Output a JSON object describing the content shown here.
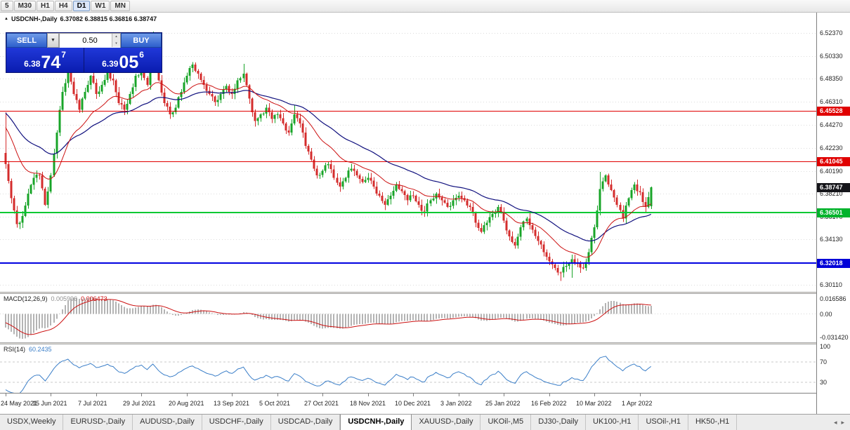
{
  "toolbar": {
    "timeframes": [
      "5",
      "M30",
      "H1",
      "H4",
      "D1",
      "W1",
      "MN"
    ],
    "active": "D1"
  },
  "chart_header": {
    "marker": "▲",
    "symbol_title": "USDCNH-,Daily",
    "ohlc_text": "6.37082 6.38815 6.36816 6.38747"
  },
  "trade_panel": {
    "sell_label": "SELL",
    "buy_label": "BUY",
    "volume": "0.50",
    "dropdown_icon": "▼",
    "spin_up": "▴",
    "spin_down": "▾",
    "bid": {
      "prefix": "6.38",
      "pips": "74",
      "pipette": "7"
    },
    "ask": {
      "prefix": "6.39",
      "pips": "05",
      "pipette": "6"
    }
  },
  "indicators": {
    "macd": {
      "name": "MACD(12,26,9)",
      "main_value": "0.005996",
      "signal_value": "0.006473",
      "axis_top": "0.016586",
      "axis_zero": "0.00",
      "axis_bottom": "-0.031420"
    },
    "rsi": {
      "name": "RSI(14)",
      "value": "60.2435",
      "axis": [
        "100",
        "70",
        "30"
      ]
    }
  },
  "price_axis": {
    "ticks": [
      "6.52370",
      "6.50330",
      "6.48350",
      "6.46310",
      "6.44270",
      "6.42230",
      "6.40190",
      "6.38210",
      "6.36170",
      "6.34130",
      "6.32090",
      "6.30110"
    ],
    "tags": [
      {
        "text": "6.45528",
        "price": 6.45528,
        "color": "#e00000",
        "name": "resistance-upper"
      },
      {
        "text": "6.41045",
        "price": 6.41045,
        "color": "#e00000",
        "name": "resistance-lower"
      },
      {
        "text": "6.38747",
        "price": 6.38747,
        "color": "#15151a",
        "name": "current-price"
      },
      {
        "text": "6.36501",
        "price": 6.36501,
        "color": "#00b32c",
        "name": "support-green"
      },
      {
        "text": "6.32018",
        "price": 6.32018,
        "color": "#0000d8",
        "name": "support-blue"
      }
    ]
  },
  "time_axis": [
    "24 May 2021",
    "15 Jun 2021",
    "7 Jul 2021",
    "29 Jul 2021",
    "20 Aug 2021",
    "13 Sep 2021",
    "5 Oct 2021",
    "27 Oct 2021",
    "18 Nov 2021",
    "10 Dec 2021",
    "3 Jan 2022",
    "25 Jan 2022",
    "16 Feb 2022",
    "10 Mar 2022",
    "1 Apr 2022"
  ],
  "tabs": {
    "items": [
      "USDX,Weekly",
      "EURUSD-,Daily",
      "AUDUSD-,Daily",
      "USDCHF-,Daily",
      "USDCAD-,Daily",
      "USDCNH-,Daily",
      "XAUUSD-,Daily",
      "UKOil-,M5",
      "DJ30-,Daily",
      "UK100-,H1",
      "USOil-,H1",
      "HK50-,H1"
    ],
    "active": "USDCNH-,Daily",
    "scroll_left": "◂",
    "scroll_right": "▸"
  },
  "chart_data": {
    "type": "candlestick",
    "title": "USDCNH-,Daily",
    "bars": 229,
    "anchor_step": 2,
    "price_range": {
      "top": 6.542,
      "bottom": 6.295
    },
    "anchor_closes": [
      6.408,
      6.378,
      6.355,
      6.362,
      6.382,
      6.396,
      6.398,
      6.372,
      6.398,
      6.436,
      6.472,
      6.492,
      6.47,
      6.456,
      6.472,
      6.486,
      6.47,
      6.478,
      6.49,
      6.482,
      6.462,
      6.456,
      6.47,
      6.486,
      6.492,
      6.478,
      6.505,
      6.482,
      6.462,
      6.452,
      6.458,
      6.472,
      6.486,
      6.496,
      6.488,
      6.478,
      6.47,
      6.463,
      6.47,
      6.477,
      6.47,
      6.482,
      6.488,
      6.466,
      6.446,
      6.452,
      6.458,
      6.448,
      6.452,
      6.444,
      6.436,
      6.452,
      6.444,
      6.424,
      6.412,
      6.398,
      6.402,
      6.408,
      6.396,
      6.388,
      6.396,
      6.404,
      6.398,
      6.392,
      6.396,
      6.388,
      6.38,
      6.372,
      6.38,
      6.39,
      6.384,
      6.376,
      6.38,
      6.372,
      6.366,
      6.376,
      6.382,
      6.376,
      6.37,
      6.376,
      6.38,
      6.376,
      6.37,
      6.356,
      6.348,
      6.356,
      6.364,
      6.37,
      6.358,
      6.344,
      6.336,
      6.352,
      6.36,
      6.35,
      6.34,
      6.33,
      6.322,
      6.316,
      6.312,
      6.318,
      6.324,
      6.32,
      6.316,
      6.33,
      6.352,
      6.386,
      6.398,
      6.385,
      6.372,
      6.36,
      6.378,
      6.39,
      6.383,
      6.37,
      6.38747
    ],
    "overrides": {
      "0": {
        "high": 6.454
      },
      "22": {
        "high": 6.4985
      },
      "52": {
        "high": 6.5252
      },
      "84": {
        "high": 6.4968
      },
      "102": {
        "high": 6.4605
      },
      "196": {
        "low": 6.3045
      },
      "200": {
        "low": 6.3075
      },
      "210": {
        "high": 6.4012
      },
      "228": {
        "open": 6.3708,
        "high": 6.38815,
        "low": 6.36816,
        "close": 6.38747
      }
    },
    "hlines": [
      {
        "price": 6.45528,
        "color": "#e00000",
        "width": 1
      },
      {
        "price": 6.41045,
        "color": "#e00000",
        "width": 1
      },
      {
        "price": 6.36501,
        "color": "#00c832",
        "width": 2
      },
      {
        "price": 6.32018,
        "color": "#0000e0",
        "width": 2
      }
    ],
    "up_color": "#18a428",
    "down_color": "#d42c2c",
    "ma_fast": {
      "period": 20,
      "color": "#cc1111"
    },
    "ma_slow": {
      "period": 45,
      "color": "#10107e"
    },
    "macd_params": [
      12,
      26,
      9
    ],
    "rsi_period": 14,
    "label_every_bars": 16
  }
}
